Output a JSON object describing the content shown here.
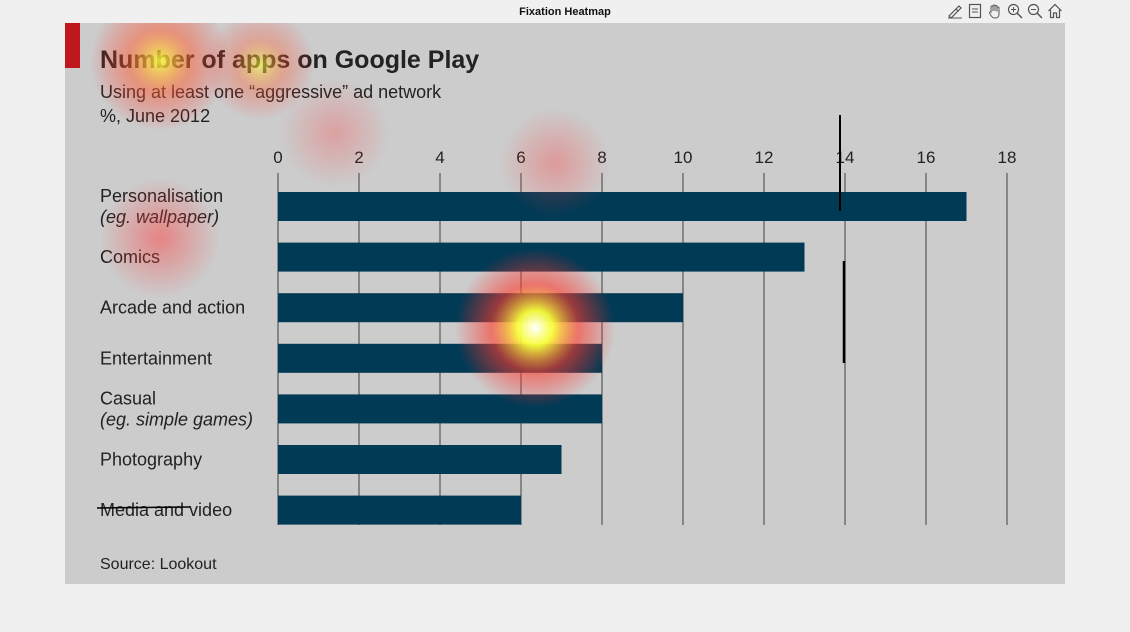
{
  "window": {
    "title": "Fixation Heatmap"
  },
  "toolbar": {
    "icons": [
      "brush-icon",
      "data-tip-icon",
      "pan-hand-icon",
      "zoom-in-icon",
      "zoom-out-icon",
      "home-icon"
    ]
  },
  "colors": {
    "bar": "#003a55",
    "background": "#cccccc",
    "accent": "#c0161d",
    "text": "#222222",
    "grid": "#6e6e6e"
  },
  "chart_data": {
    "type": "bar",
    "orientation": "horizontal",
    "title": "Number of apps on Google Play",
    "subtitle": "Using at least one “aggressive” ad network",
    "units_note": "%, June 2012",
    "source": "Source: Lookout",
    "categories": [
      [
        "Personalisation",
        "(eg. wallpaper)"
      ],
      [
        "Comics"
      ],
      [
        "Arcade and action"
      ],
      [
        "Entertainment"
      ],
      [
        "Casual",
        "(eg. simple games)"
      ],
      [
        "Photography"
      ],
      [
        "Media and video"
      ]
    ],
    "values": [
      17,
      13,
      10,
      8,
      8,
      7,
      6
    ],
    "xlim": [
      0,
      18
    ],
    "xticks": [
      0,
      2,
      4,
      6,
      8,
      10,
      12,
      14,
      16,
      18
    ],
    "xtick_labels": [
      "0",
      "2",
      "4",
      "6",
      "8",
      "10",
      "12",
      "14",
      "16",
      "18"
    ],
    "xaxis_position": "top",
    "grid": true,
    "legend": "none"
  }
}
